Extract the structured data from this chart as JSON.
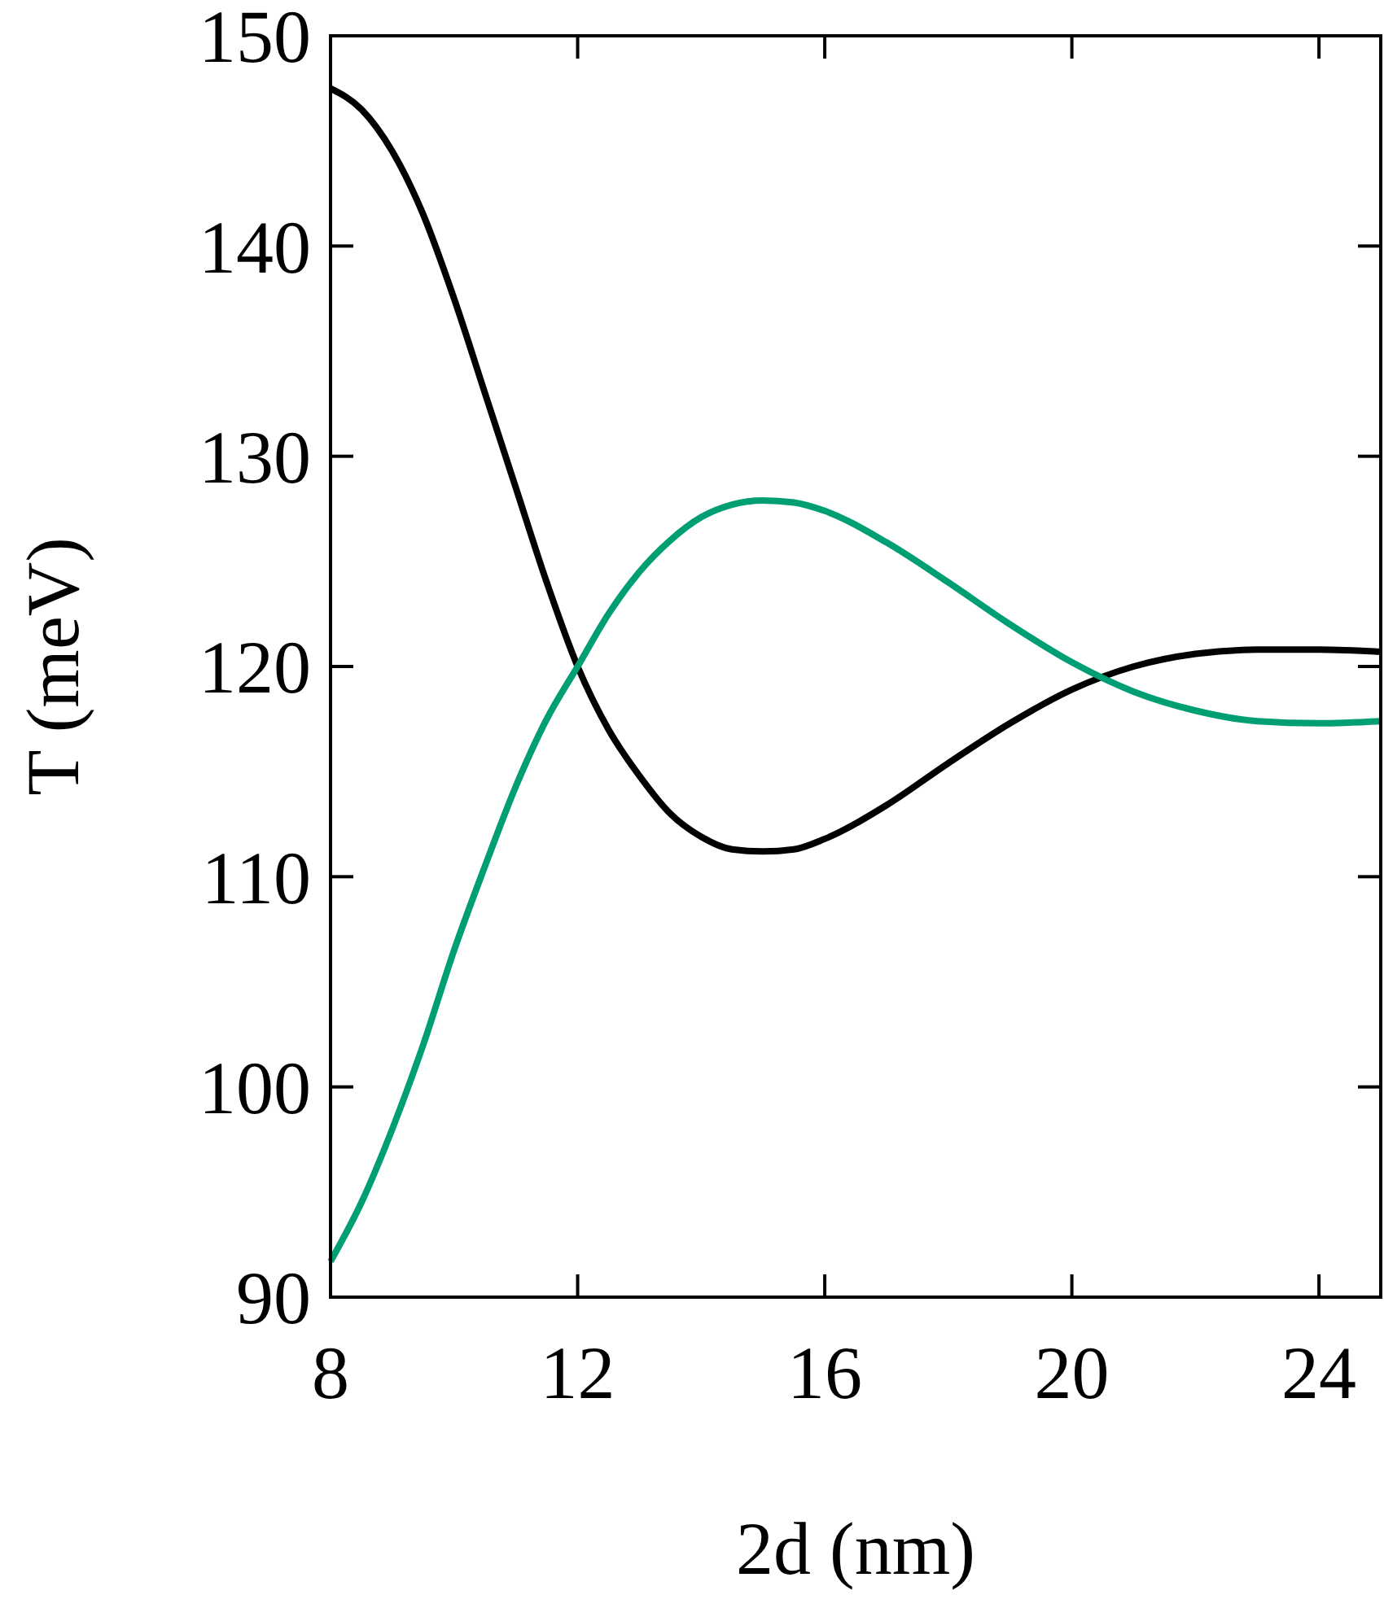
{
  "chart_data": {
    "type": "line",
    "xlabel": "2d (nm)",
    "ylabel": "T (meV)",
    "xlim": [
      8,
      25
    ],
    "ylim": [
      90,
      150
    ],
    "xticks": [
      8,
      12,
      16,
      20,
      24
    ],
    "yticks": [
      90,
      100,
      110,
      120,
      130,
      140,
      150
    ],
    "grid": false,
    "line_style": "solid",
    "x": [
      8,
      8.5,
      9,
      9.5,
      10,
      10.5,
      11,
      11.5,
      12,
      12.5,
      13,
      13.5,
      14,
      14.5,
      15,
      15.5,
      16,
      17,
      18,
      19,
      20,
      21,
      22,
      23,
      24,
      25
    ],
    "series": [
      {
        "color": "#000000",
        "values": [
          147.5,
          146.5,
          144.5,
          141.5,
          137.5,
          133,
          128.5,
          124,
          120,
          117,
          114.8,
          113,
          111.9,
          111.3,
          111.2,
          111.3,
          111.8,
          113.4,
          115.4,
          117.3,
          118.9,
          120,
          120.6,
          120.8,
          120.8,
          120.7
        ]
      },
      {
        "color": "#009e73",
        "values": [
          91.7,
          94.5,
          98,
          102,
          106.5,
          110.5,
          114.3,
          117.5,
          120,
          122.5,
          124.5,
          126,
          127.1,
          127.7,
          127.9,
          127.8,
          127.4,
          125.9,
          124,
          122,
          120.2,
          118.8,
          117.9,
          117.4,
          117.3,
          117.4
        ]
      }
    ]
  }
}
